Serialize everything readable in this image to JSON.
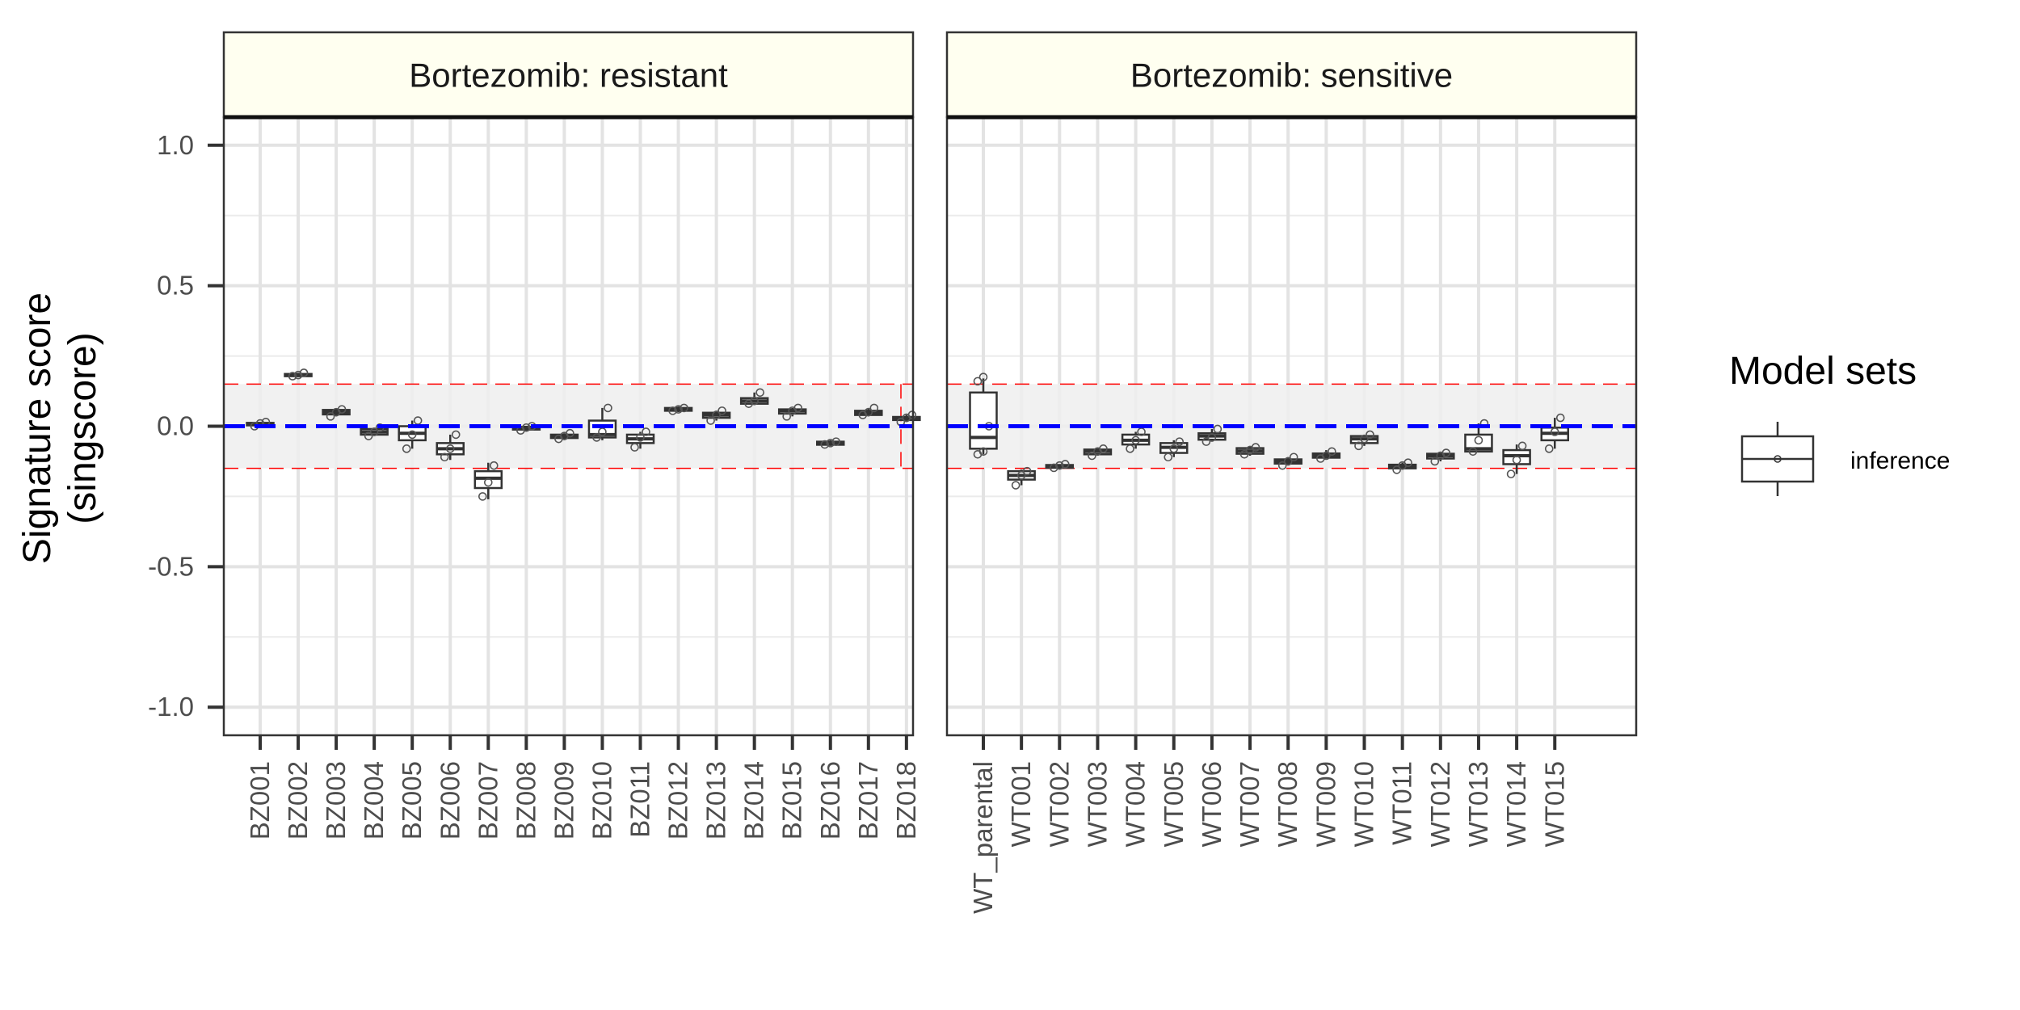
{
  "chart_data": {
    "type": "boxplot",
    "ylabel_lines": [
      "Signature score",
      "(singscore)"
    ],
    "ylim": [
      -1.1,
      1.1
    ],
    "yticks": [
      1.0,
      0.5,
      0.0,
      -0.5,
      -1.0
    ],
    "ytick_labels": [
      "1.0",
      "0.5",
      "0.0",
      "-0.5",
      "-1.0"
    ],
    "reference_line": 0.0,
    "band": [
      -0.15,
      0.15
    ],
    "grid": true,
    "legend": {
      "title": "Model sets",
      "placement": "right",
      "entries": [
        "inference"
      ]
    },
    "colors": {
      "reference": "#0000ff",
      "band_edge": "#ff0000",
      "band_fill": "#efefef",
      "strip_fill": "#fffff0",
      "box": "#333333"
    },
    "panels": [
      {
        "title": "Bortezomib: resistant",
        "categories": [
          "BZ001",
          "BZ002",
          "BZ003",
          "BZ004",
          "BZ005",
          "BZ006",
          "BZ007",
          "BZ008",
          "BZ009",
          "BZ010",
          "BZ011",
          "BZ012",
          "BZ013",
          "BZ014",
          "BZ015",
          "BZ016",
          "BZ017",
          "BZ018"
        ],
        "boxes": [
          {
            "q1": 0.003,
            "median": 0.008,
            "q3": 0.012,
            "min": -0.005,
            "max": 0.015,
            "points": [
              0.0,
              0.01,
              0.015
            ]
          },
          {
            "q1": 0.178,
            "median": 0.182,
            "q3": 0.186,
            "min": 0.175,
            "max": 0.19,
            "points": [
              0.178,
              0.182,
              0.19
            ]
          },
          {
            "q1": 0.042,
            "median": 0.05,
            "q3": 0.058,
            "min": 0.035,
            "max": 0.06,
            "points": [
              0.035,
              0.05,
              0.06
            ]
          },
          {
            "q1": -0.03,
            "median": -0.02,
            "q3": -0.01,
            "min": -0.035,
            "max": -0.005,
            "points": [
              -0.035,
              -0.02,
              -0.005
            ]
          },
          {
            "q1": -0.05,
            "median": -0.025,
            "q3": 0.0,
            "min": -0.08,
            "max": 0.02,
            "points": [
              -0.08,
              -0.03,
              0.02
            ]
          },
          {
            "q1": -0.1,
            "median": -0.08,
            "q3": -0.06,
            "min": -0.12,
            "max": -0.03,
            "points": [
              -0.11,
              -0.08,
              -0.03
            ]
          },
          {
            "q1": -0.22,
            "median": -0.185,
            "q3": -0.16,
            "min": -0.26,
            "max": -0.13,
            "points": [
              -0.25,
              -0.2,
              -0.14
            ]
          },
          {
            "q1": -0.012,
            "median": -0.007,
            "q3": -0.002,
            "min": -0.015,
            "max": 0.0,
            "points": [
              -0.015,
              -0.005,
              0.0
            ]
          },
          {
            "q1": -0.042,
            "median": -0.037,
            "q3": -0.03,
            "min": -0.045,
            "max": -0.025,
            "points": [
              -0.045,
              -0.035,
              -0.025
            ]
          },
          {
            "q1": -0.04,
            "median": -0.03,
            "q3": 0.02,
            "min": -0.05,
            "max": 0.065,
            "points": [
              -0.04,
              -0.02,
              0.065
            ]
          },
          {
            "q1": -0.06,
            "median": -0.045,
            "q3": -0.03,
            "min": -0.08,
            "max": -0.02,
            "points": [
              -0.075,
              -0.04,
              -0.02
            ]
          },
          {
            "q1": 0.055,
            "median": 0.06,
            "q3": 0.065,
            "min": 0.05,
            "max": 0.07,
            "points": [
              0.055,
              0.06,
              0.065
            ]
          },
          {
            "q1": 0.03,
            "median": 0.04,
            "q3": 0.048,
            "min": 0.02,
            "max": 0.055,
            "points": [
              0.02,
              0.04,
              0.055
            ]
          },
          {
            "q1": 0.08,
            "median": 0.09,
            "q3": 0.1,
            "min": 0.075,
            "max": 0.12,
            "points": [
              0.08,
              0.09,
              0.12
            ]
          },
          {
            "q1": 0.045,
            "median": 0.055,
            "q3": 0.06,
            "min": 0.035,
            "max": 0.065,
            "points": [
              0.035,
              0.055,
              0.065
            ]
          },
          {
            "q1": -0.066,
            "median": -0.06,
            "q3": -0.055,
            "min": -0.07,
            "max": -0.05,
            "points": [
              -0.065,
              -0.06,
              -0.055
            ]
          },
          {
            "q1": 0.04,
            "median": 0.048,
            "q3": 0.055,
            "min": 0.035,
            "max": 0.065,
            "points": [
              0.04,
              0.05,
              0.065
            ]
          },
          {
            "q1": 0.022,
            "median": 0.028,
            "q3": 0.033,
            "min": 0.015,
            "max": 0.04,
            "points": [
              0.015,
              0.03,
              0.04
            ]
          }
        ]
      },
      {
        "title": "Bortezomib: sensitive",
        "categories": [
          "WT_parental",
          "WT001",
          "WT002",
          "WT003",
          "WT004",
          "WT005",
          "WT006",
          "WT007",
          "WT008",
          "WT009",
          "WT010",
          "WT011",
          "WT012",
          "WT013",
          "WT014",
          "WT015"
        ],
        "boxes": [
          {
            "q1": -0.08,
            "median": -0.04,
            "q3": 0.12,
            "min": -0.1,
            "max": 0.17,
            "points": [
              -0.1,
              -0.09,
              0.0,
              0.16,
              0.175
            ]
          },
          {
            "q1": -0.19,
            "median": -0.175,
            "q3": -0.16,
            "min": -0.21,
            "max": -0.155,
            "points": [
              -0.21,
              -0.175,
              -0.16
            ]
          },
          {
            "q1": -0.148,
            "median": -0.143,
            "q3": -0.138,
            "min": -0.15,
            "max": -0.135,
            "points": [
              -0.148,
              -0.14,
              -0.135
            ]
          },
          {
            "q1": -0.1,
            "median": -0.09,
            "q3": -0.083,
            "min": -0.105,
            "max": -0.08,
            "points": [
              -0.105,
              -0.09,
              -0.08
            ]
          },
          {
            "q1": -0.065,
            "median": -0.05,
            "q3": -0.03,
            "min": -0.08,
            "max": -0.02,
            "points": [
              -0.08,
              -0.05,
              -0.02
            ]
          },
          {
            "q1": -0.095,
            "median": -0.075,
            "q3": -0.06,
            "min": -0.11,
            "max": -0.05,
            "points": [
              -0.11,
              -0.08,
              -0.055
            ]
          },
          {
            "q1": -0.048,
            "median": -0.035,
            "q3": -0.025,
            "min": -0.055,
            "max": -0.01,
            "points": [
              -0.055,
              -0.04,
              -0.01
            ]
          },
          {
            "q1": -0.098,
            "median": -0.088,
            "q3": -0.078,
            "min": -0.105,
            "max": -0.07,
            "points": [
              -0.1,
              -0.085,
              -0.075
            ]
          },
          {
            "q1": -0.133,
            "median": -0.125,
            "q3": -0.118,
            "min": -0.14,
            "max": -0.11,
            "points": [
              -0.14,
              -0.125,
              -0.11
            ]
          },
          {
            "q1": -0.112,
            "median": -0.105,
            "q3": -0.097,
            "min": -0.115,
            "max": -0.085,
            "points": [
              -0.115,
              -0.105,
              -0.09
            ]
          },
          {
            "q1": -0.06,
            "median": -0.045,
            "q3": -0.035,
            "min": -0.07,
            "max": -0.03,
            "points": [
              -0.07,
              -0.045,
              -0.03
            ]
          },
          {
            "q1": -0.15,
            "median": -0.143,
            "q3": -0.137,
            "min": -0.155,
            "max": -0.13,
            "points": [
              -0.155,
              -0.14,
              -0.13
            ]
          },
          {
            "q1": -0.115,
            "median": -0.105,
            "q3": -0.098,
            "min": -0.125,
            "max": -0.095,
            "points": [
              -0.125,
              -0.105,
              -0.095
            ]
          },
          {
            "q1": -0.09,
            "median": -0.08,
            "q3": -0.03,
            "min": -0.09,
            "max": 0.01,
            "points": [
              -0.09,
              -0.05,
              0.01
            ]
          },
          {
            "q1": -0.135,
            "median": -0.105,
            "q3": -0.085,
            "min": -0.17,
            "max": -0.065,
            "points": [
              -0.17,
              -0.12,
              -0.07
            ]
          },
          {
            "q1": -0.05,
            "median": -0.025,
            "q3": -0.005,
            "min": -0.08,
            "max": 0.03,
            "points": [
              -0.08,
              -0.02,
              0.03
            ]
          }
        ]
      }
    ]
  }
}
